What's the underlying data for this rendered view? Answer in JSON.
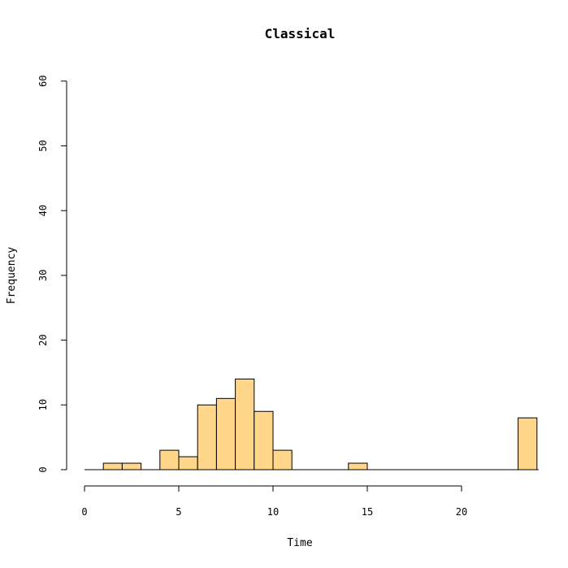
{
  "chart_data": {
    "type": "bar",
    "title": "Classical",
    "xlabel": "Time",
    "ylabel": "Frequency",
    "bar_color": "#FFD68A",
    "xlim": [
      0,
      24
    ],
    "ylim": [
      0,
      60
    ],
    "x_ticks": [
      0,
      5,
      10,
      15,
      20
    ],
    "y_ticks": [
      0,
      10,
      20,
      30,
      40,
      50,
      60
    ],
    "bins": [
      {
        "start": 0,
        "end": 1,
        "count": 0
      },
      {
        "start": 1,
        "end": 2,
        "count": 1
      },
      {
        "start": 2,
        "end": 3,
        "count": 1
      },
      {
        "start": 3,
        "end": 4,
        "count": 0
      },
      {
        "start": 4,
        "end": 5,
        "count": 3
      },
      {
        "start": 5,
        "end": 6,
        "count": 2
      },
      {
        "start": 6,
        "end": 7,
        "count": 10
      },
      {
        "start": 7,
        "end": 8,
        "count": 11
      },
      {
        "start": 8,
        "end": 9,
        "count": 14
      },
      {
        "start": 9,
        "end": 10,
        "count": 9
      },
      {
        "start": 10,
        "end": 11,
        "count": 3
      },
      {
        "start": 11,
        "end": 12,
        "count": 0
      },
      {
        "start": 12,
        "end": 13,
        "count": 0
      },
      {
        "start": 13,
        "end": 14,
        "count": 0
      },
      {
        "start": 14,
        "end": 15,
        "count": 1
      },
      {
        "start": 15,
        "end": 16,
        "count": 0
      },
      {
        "start": 16,
        "end": 17,
        "count": 0
      },
      {
        "start": 17,
        "end": 18,
        "count": 0
      },
      {
        "start": 18,
        "end": 19,
        "count": 0
      },
      {
        "start": 19,
        "end": 20,
        "count": 0
      },
      {
        "start": 20,
        "end": 21,
        "count": 0
      },
      {
        "start": 21,
        "end": 22,
        "count": 0
      },
      {
        "start": 22,
        "end": 23,
        "count": 0
      },
      {
        "start": 23,
        "end": 24,
        "count": 8
      }
    ]
  }
}
